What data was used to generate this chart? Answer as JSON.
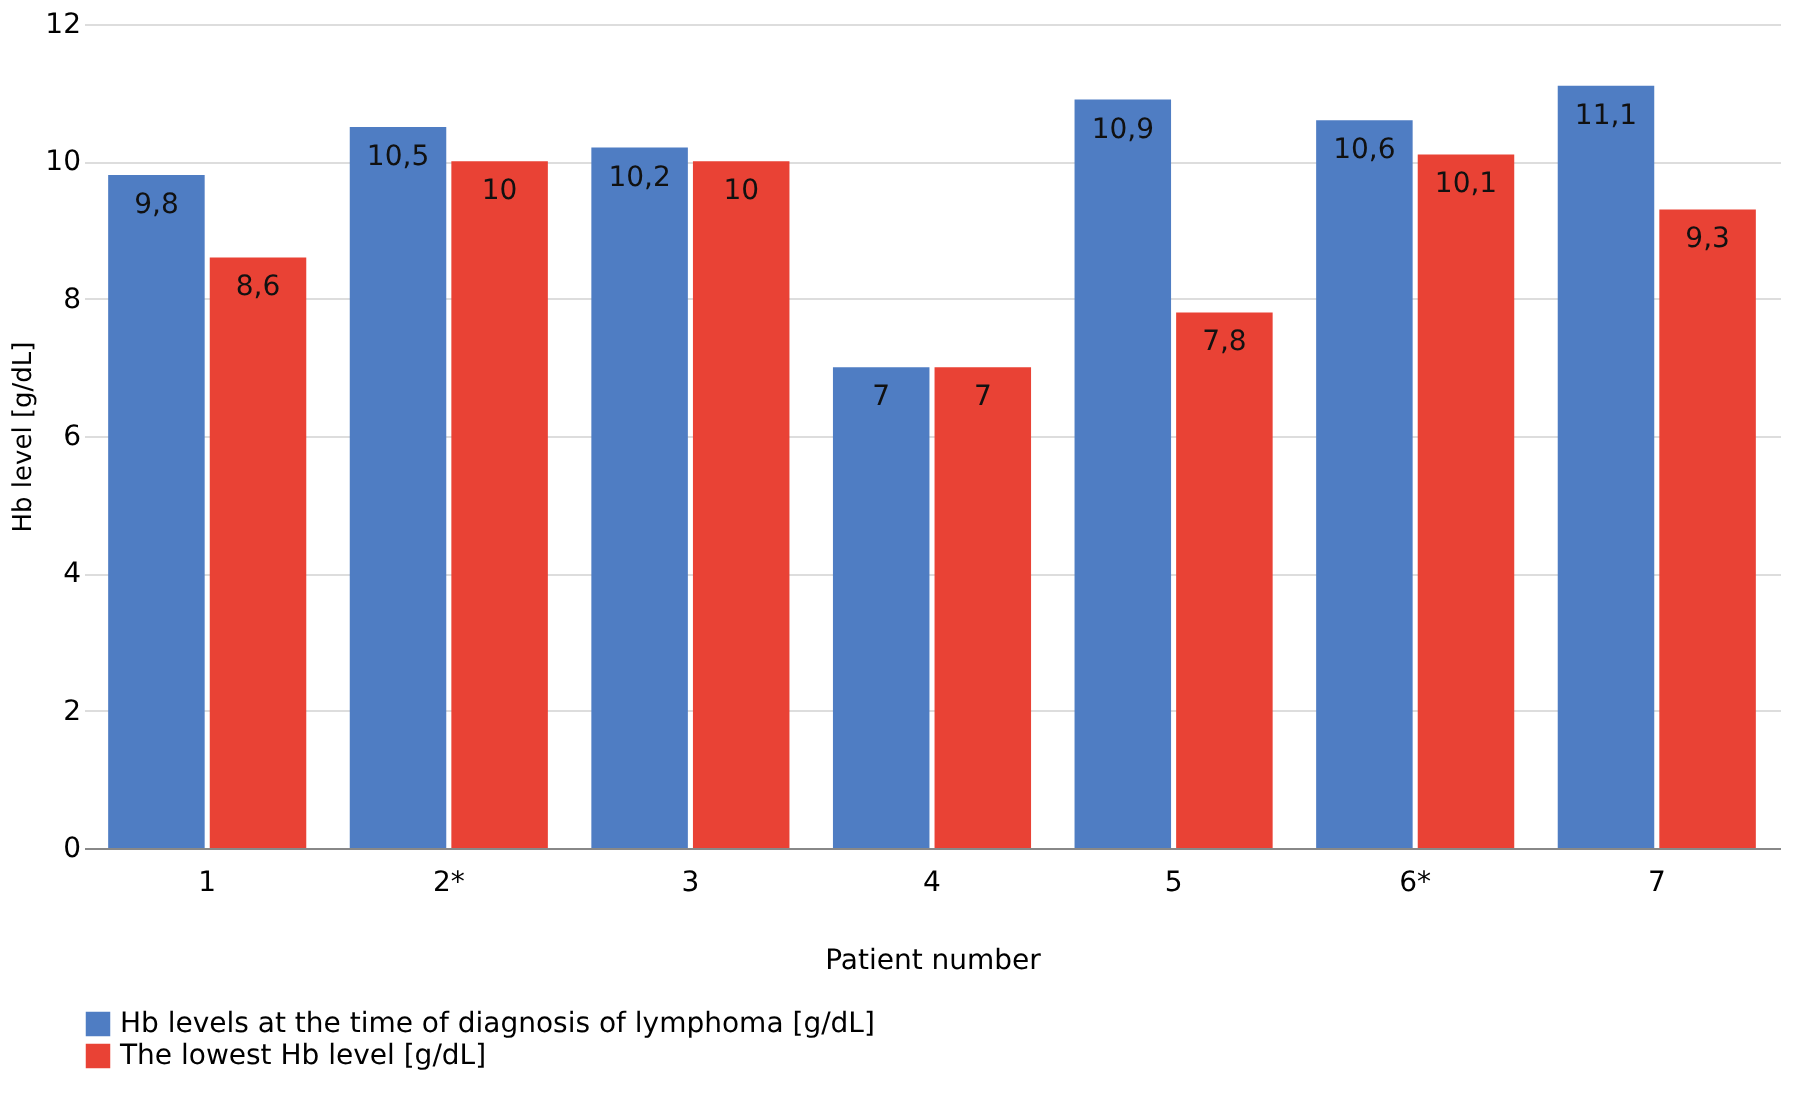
{
  "chart_data": {
    "type": "bar",
    "xlabel": "Patient number",
    "ylabel": "Hb level [g/dL]",
    "categories": [
      "1",
      "2*",
      "3",
      "4",
      "5",
      "6*",
      "7"
    ],
    "series": [
      {
        "name": "Hb levels at the time of diagnosis of lymphoma [g/dL]",
        "color": "#4f7dc3",
        "values": [
          9.8,
          10.5,
          10.2,
          7,
          10.9,
          10.6,
          11.1
        ],
        "value_labels": [
          "9,8",
          "10,5",
          "10,2",
          "7",
          "10,9",
          "10,6",
          "11,1"
        ]
      },
      {
        "name": "The lowest Hb level [g/dL]",
        "color": "#e94235",
        "values": [
          8.6,
          10,
          10,
          7,
          7.8,
          10.1,
          9.3
        ],
        "value_labels": [
          "8,6",
          "10",
          "10",
          "7",
          "7,8",
          "10,1",
          "9,3"
        ]
      }
    ],
    "ylim": [
      0,
      12
    ],
    "yticks": [
      0,
      2,
      4,
      6,
      8,
      10,
      12
    ],
    "grid": "y",
    "legend": "bottom"
  }
}
